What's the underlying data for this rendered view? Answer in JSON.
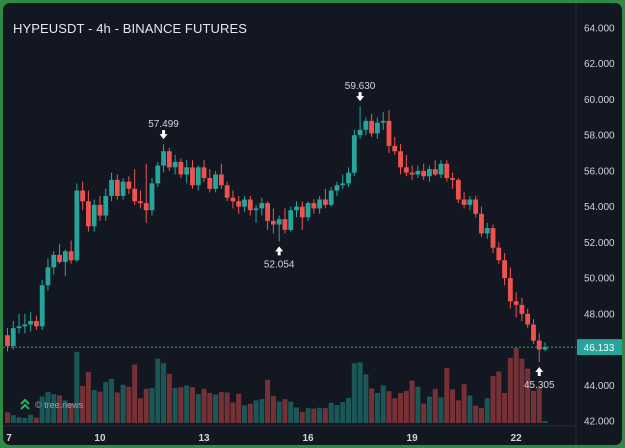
{
  "header": {
    "title": "HYPEUSDT - 4h - BINANCE FUTURES"
  },
  "watermark": {
    "icon": "tree-news-logo-icon",
    "text": "© tree.news"
  },
  "colors": {
    "background": "#131722",
    "up": "#26a69a",
    "down": "#ef5350",
    "text": "#d1d4dc",
    "frame": "#2f8a45"
  },
  "chart_data": {
    "type": "candlestick",
    "title": "HYPEUSDT - 4h - BINANCE FUTURES",
    "xlabel": "",
    "ylabel": "",
    "x_ticks": [
      "7",
      "10",
      "13",
      "16",
      "19",
      "22"
    ],
    "y_ticks": [
      "42.000",
      "44.000",
      "46.000",
      "48.000",
      "50.000",
      "52.000",
      "54.000",
      "56.000",
      "58.000",
      "60.000",
      "62.000",
      "64.000"
    ],
    "ylim": [
      42,
      65
    ],
    "grid": false,
    "last_price": "46.133",
    "annotations": [
      {
        "text": "57.499",
        "type": "high",
        "value": 57.499
      },
      {
        "text": "52.054",
        "type": "low",
        "value": 52.054
      },
      {
        "text": "59.630",
        "type": "high",
        "value": 59.63
      },
      {
        "text": "45.305",
        "type": "low",
        "value": 45.305
      }
    ],
    "candles": [
      [
        46.8,
        47.2,
        45.9,
        46.2
      ],
      [
        46.2,
        47.6,
        46.0,
        47.2
      ],
      [
        47.2,
        48.0,
        46.9,
        47.3
      ],
      [
        47.3,
        48.0,
        46.9,
        47.4
      ],
      [
        47.4,
        48.1,
        47.0,
        47.6
      ],
      [
        47.6,
        47.9,
        47.1,
        47.3
      ],
      [
        47.3,
        49.9,
        47.1,
        49.6
      ],
      [
        49.6,
        51.1,
        49.3,
        50.6
      ],
      [
        50.6,
        51.5,
        50.2,
        51.3
      ],
      [
        51.3,
        51.9,
        50.8,
        50.9
      ],
      [
        50.9,
        51.6,
        50.1,
        51.5
      ],
      [
        51.5,
        52.1,
        50.8,
        51.0
      ],
      [
        51.0,
        55.3,
        50.9,
        54.9
      ],
      [
        54.9,
        55.4,
        53.8,
        54.3
      ],
      [
        54.3,
        54.9,
        52.6,
        52.9
      ],
      [
        52.9,
        54.4,
        52.6,
        54.1
      ],
      [
        54.1,
        54.6,
        53.2,
        53.5
      ],
      [
        53.5,
        55.0,
        53.2,
        54.6
      ],
      [
        54.6,
        55.9,
        54.3,
        55.5
      ],
      [
        55.5,
        55.8,
        54.4,
        54.6
      ],
      [
        54.6,
        55.6,
        54.4,
        55.4
      ],
      [
        55.4,
        55.7,
        54.7,
        55.0
      ],
      [
        55.0,
        56.1,
        54.1,
        54.3
      ],
      [
        54.3,
        54.9,
        53.9,
        54.2
      ],
      [
        54.2,
        56.4,
        53.1,
        53.8
      ],
      [
        53.8,
        55.6,
        53.5,
        55.3
      ],
      [
        55.3,
        56.5,
        55.1,
        56.3
      ],
      [
        56.3,
        57.5,
        55.9,
        57.1
      ],
      [
        57.1,
        57.3,
        56.0,
        56.2
      ],
      [
        56.2,
        56.9,
        55.8,
        56.5
      ],
      [
        56.5,
        56.7,
        55.6,
        55.8
      ],
      [
        55.8,
        56.6,
        55.3,
        56.2
      ],
      [
        56.2,
        56.6,
        55.0,
        55.2
      ],
      [
        55.2,
        56.3,
        54.9,
        56.2
      ],
      [
        56.2,
        56.6,
        55.4,
        55.6
      ],
      [
        55.6,
        56.1,
        54.8,
        55.0
      ],
      [
        55.0,
        56.0,
        54.8,
        55.8
      ],
      [
        55.8,
        56.4,
        55.0,
        55.2
      ],
      [
        55.2,
        55.4,
        54.3,
        54.5
      ],
      [
        54.5,
        54.9,
        53.9,
        54.3
      ],
      [
        54.3,
        54.6,
        53.6,
        54.0
      ],
      [
        54.0,
        54.6,
        53.7,
        54.4
      ],
      [
        54.4,
        54.6,
        53.5,
        53.8
      ],
      [
        53.8,
        54.1,
        53.1,
        53.9
      ],
      [
        53.9,
        54.5,
        53.5,
        54.2
      ],
      [
        54.2,
        54.3,
        52.7,
        53.2
      ],
      [
        53.2,
        53.9,
        52.5,
        53.0
      ],
      [
        53.0,
        53.5,
        52.054,
        53.3
      ],
      [
        53.3,
        53.9,
        52.5,
        52.7
      ],
      [
        52.7,
        54.0,
        52.6,
        53.8
      ],
      [
        53.8,
        54.3,
        53.4,
        54.0
      ],
      [
        54.0,
        54.3,
        52.7,
        53.4
      ],
      [
        53.4,
        54.3,
        53.2,
        54.2
      ],
      [
        54.2,
        54.4,
        53.6,
        53.9
      ],
      [
        53.9,
        54.6,
        53.6,
        54.4
      ],
      [
        54.4,
        55.0,
        53.9,
        54.1
      ],
      [
        54.1,
        55.1,
        54.0,
        54.9
      ],
      [
        54.9,
        55.4,
        54.6,
        55.2
      ],
      [
        55.2,
        55.8,
        55.0,
        55.3
      ],
      [
        55.3,
        56.2,
        55.1,
        55.9
      ],
      [
        55.9,
        58.3,
        55.7,
        58.0
      ],
      [
        58.0,
        59.63,
        57.8,
        58.3
      ],
      [
        58.3,
        59.0,
        58.0,
        58.8
      ],
      [
        58.8,
        59.2,
        57.9,
        58.1
      ],
      [
        58.1,
        59.0,
        57.8,
        58.7
      ],
      [
        58.7,
        59.3,
        58.3,
        58.8
      ],
      [
        58.8,
        59.4,
        57.0,
        57.4
      ],
      [
        57.4,
        57.9,
        56.9,
        57.1
      ],
      [
        57.1,
        57.5,
        55.8,
        56.2
      ],
      [
        56.2,
        56.9,
        55.7,
        55.9
      ],
      [
        55.9,
        56.3,
        55.5,
        55.8
      ],
      [
        55.8,
        56.3,
        55.6,
        56.0
      ],
      [
        56.0,
        56.4,
        55.5,
        55.7
      ],
      [
        55.7,
        56.3,
        55.4,
        56.1
      ],
      [
        56.1,
        56.6,
        55.7,
        55.8
      ],
      [
        55.8,
        56.6,
        55.6,
        56.4
      ],
      [
        56.4,
        56.6,
        55.4,
        55.6
      ],
      [
        55.6,
        55.9,
        55.0,
        55.5
      ],
      [
        55.5,
        55.6,
        54.2,
        54.4
      ],
      [
        54.4,
        54.8,
        53.9,
        54.1
      ],
      [
        54.1,
        54.6,
        53.8,
        54.4
      ],
      [
        54.4,
        54.6,
        53.4,
        53.6
      ],
      [
        53.6,
        54.0,
        52.3,
        52.5
      ],
      [
        52.5,
        53.1,
        52.2,
        52.8
      ],
      [
        52.8,
        53.0,
        51.4,
        51.7
      ],
      [
        51.7,
        52.0,
        50.8,
        51.0
      ],
      [
        51.0,
        51.4,
        49.6,
        50.0
      ],
      [
        50.0,
        50.6,
        48.3,
        48.7
      ],
      [
        48.7,
        49.2,
        47.8,
        48.5
      ],
      [
        48.5,
        48.9,
        47.6,
        48.0
      ],
      [
        48.0,
        48.3,
        47.2,
        47.4
      ],
      [
        47.4,
        47.7,
        46.3,
        46.5
      ],
      [
        46.5,
        46.9,
        45.305,
        46.0
      ],
      [
        46.0,
        46.4,
        45.9,
        46.133
      ]
    ],
    "volumes": [
      2.6,
      1.9,
      1.4,
      1.2,
      2.0,
      1.3,
      6.4,
      7.5,
      7.0,
      6.7,
      5.5,
      4.8,
      17.3,
      9.0,
      12.4,
      8.0,
      7.6,
      10.0,
      10.7,
      7.4,
      9.3,
      8.8,
      14.2,
      6.0,
      8.3,
      8.5,
      15.6,
      14.5,
      11.9,
      8.5,
      8.7,
      9.1,
      8.7,
      7.0,
      8.3,
      7.3,
      6.9,
      7.5,
      7.4,
      5.0,
      7.1,
      4.3,
      4.7,
      5.5,
      5.8,
      10.5,
      6.6,
      5.2,
      5.8,
      5.2,
      3.8,
      2.7,
      3.6,
      3.5,
      3.7,
      3.6,
      4.9,
      4.4,
      5.1,
      6.1,
      14.5,
      14.7,
      11.8,
      8.4,
      7.3,
      9.1,
      7.7,
      6.0,
      7.3,
      7.8,
      10.3,
      8.8,
      4.7,
      6.4,
      8.3,
      6.2,
      13.3,
      8.2,
      5.5,
      9.4,
      6.7,
      4.2,
      3.6,
      6.0,
      11.4,
      12.5,
      7.3,
      15.8,
      18.2,
      15.6,
      13.2,
      7.8,
      8.5,
      0.5
    ]
  }
}
